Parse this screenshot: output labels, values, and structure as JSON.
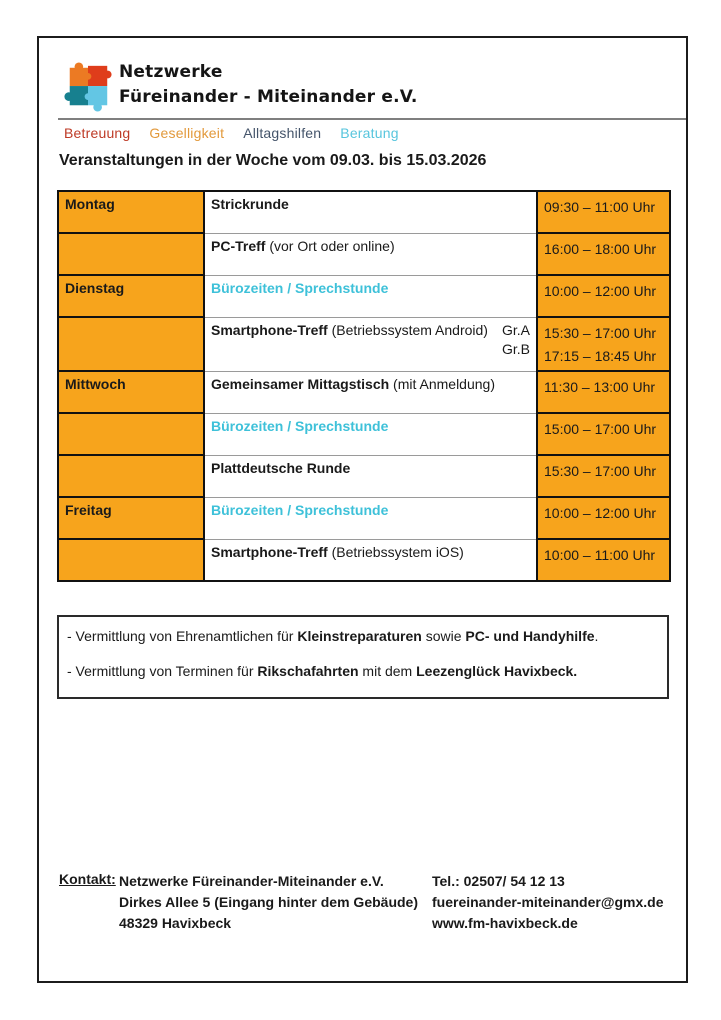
{
  "header": {
    "org_name_line1": "Netzwerke",
    "org_name_line2": "Füreinander - Miteinander e.V.",
    "logo_colors": {
      "top_left": "#EC7A23",
      "top_right": "#DF3D1B",
      "bottom_left": "#17808F",
      "bottom_right": "#63C6E4"
    },
    "nav_items": [
      {
        "label": "Betreuung",
        "color": "#BE3A26"
      },
      {
        "label": "Geselligkeit",
        "color": "#E2993B"
      },
      {
        "label": "Alltagshilfen",
        "color": "#44546A"
      },
      {
        "label": "Beratung",
        "color": "#57C5DD"
      }
    ]
  },
  "title": "Veranstaltungen in der Woche vom 09.03. bis 15.03.2026",
  "schedule": {
    "accent_color": "#F7A41C",
    "highlight_color": "#3EC1D9",
    "rows": [
      {
        "day": "Montag",
        "event_bold": "Strickrunde",
        "event_rest": "",
        "highlight": false,
        "times": [
          "09:30 – 11:00 Uhr"
        ]
      },
      {
        "day": "",
        "event_bold": "PC-Treff",
        "event_rest": " (vor Ort oder online)",
        "highlight": false,
        "times": [
          "16:00 – 18:00 Uhr"
        ]
      },
      {
        "day": "Dienstag",
        "event_bold": "Bürozeiten / Sprechstunde",
        "event_rest": "",
        "highlight": true,
        "times": [
          "10:00 – 12:00 Uhr"
        ]
      },
      {
        "day": "",
        "event_bold": "Smartphone-Treff",
        "event_rest": " (Betriebssystem Android)",
        "highlight": false,
        "groups": [
          "Gr.A",
          "Gr.B"
        ],
        "times": [
          "15:30 – 17:00 Uhr",
          "17:15 – 18:45 Uhr"
        ]
      },
      {
        "day": "Mittwoch",
        "event_bold": "Gemeinsamer Mittagstisch",
        "event_rest": " (mit Anmeldung)",
        "highlight": false,
        "times": [
          "11:30 – 13:00 Uhr"
        ]
      },
      {
        "day": "",
        "event_bold": "Bürozeiten / Sprechstunde",
        "event_rest": "",
        "highlight": true,
        "times": [
          "15:00 – 17:00 Uhr"
        ]
      },
      {
        "day": "",
        "event_bold": "Plattdeutsche Runde",
        "event_rest": "",
        "highlight": false,
        "times": [
          "15:30 – 17:00 Uhr"
        ]
      },
      {
        "day": "Freitag",
        "event_bold": "Bürozeiten / Sprechstunde",
        "event_rest": "",
        "highlight": true,
        "times": [
          "10:00 – 12:00 Uhr"
        ]
      },
      {
        "day": "",
        "event_bold": "Smartphone-Treff",
        "event_rest": " (Betriebssystem iOS)",
        "highlight": false,
        "times": [
          "10:00 – 11:00 Uhr"
        ]
      }
    ]
  },
  "info_box": {
    "lines": [
      {
        "segments": [
          {
            "text": "- Vermittlung von Ehrenamtlichen für ",
            "bold": false
          },
          {
            "text": "Kleinstreparaturen",
            "bold": true
          },
          {
            "text": " sowie ",
            "bold": false
          },
          {
            "text": "PC- und Handyhilfe",
            "bold": true
          },
          {
            "text": ".",
            "bold": false
          }
        ]
      },
      {
        "segments": [
          {
            "text": "- Vermittlung von Terminen für ",
            "bold": false
          },
          {
            "text": "Rikschafahrten",
            "bold": true
          },
          {
            "text": " mit dem ",
            "bold": false
          },
          {
            "text": "Leezenglück Havixbeck.",
            "bold": true
          }
        ]
      }
    ]
  },
  "contact": {
    "label": "Kontakt:",
    "address_lines": [
      "Netzwerke Füreinander-Miteinander e.V.",
      "Dirkes Allee 5 (Eingang hinter dem Gebäude)",
      "48329 Havixbeck"
    ],
    "detail_lines": [
      "Tel.: 02507/ 54 12 13",
      "fuereinander-miteinander@gmx.de",
      "www.fm-havixbeck.de"
    ]
  }
}
